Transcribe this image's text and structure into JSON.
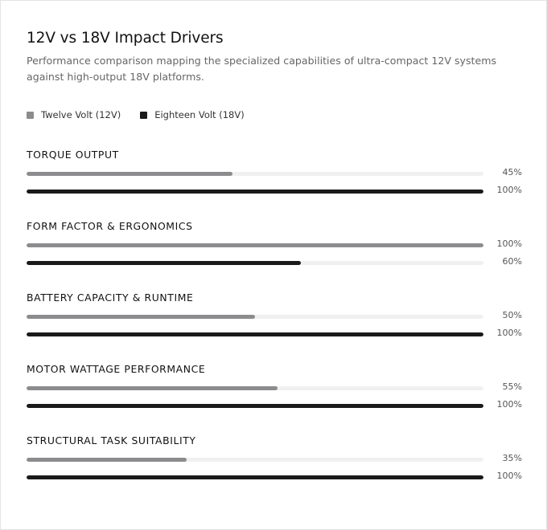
{
  "header": {
    "title": "12V vs 18V Impact Drivers",
    "subtitle": "Performance comparison mapping the specialized capabilities of ultra-compact 12V systems against high-output 18V platforms."
  },
  "colors": {
    "twelve_volt": "#8c8c8e",
    "eighteen_volt": "#1a1a1a",
    "track": "#f0f0f0"
  },
  "chart_data": {
    "type": "bar",
    "orientation": "horizontal",
    "title": "12V vs 18V Impact Drivers",
    "subtitle": "Performance comparison mapping the specialized capabilities of ultra-compact 12V systems against high-output 18V platforms.",
    "xlim": [
      0,
      100
    ],
    "unit": "%",
    "legend_position": "top-left",
    "grid": false,
    "categories": [
      "TORQUE OUTPUT",
      "FORM FACTOR & ERGONOMICS",
      "BATTERY CAPACITY & RUNTIME",
      "MOTOR WATTAGE PERFORMANCE",
      "STRUCTURAL TASK SUITABILITY"
    ],
    "series": [
      {
        "name": "Twelve Volt (12V)",
        "color": "#8c8c8e",
        "values": [
          45,
          100,
          50,
          55,
          35
        ]
      },
      {
        "name": "Eighteen Volt (18V)",
        "color": "#1a1a1a",
        "values": [
          100,
          60,
          100,
          100,
          100
        ]
      }
    ],
    "value_labels": [
      [
        "45%",
        "100%",
        "50%",
        "55%",
        "35%"
      ],
      [
        "100%",
        "60%",
        "100%",
        "100%",
        "100%"
      ]
    ]
  }
}
